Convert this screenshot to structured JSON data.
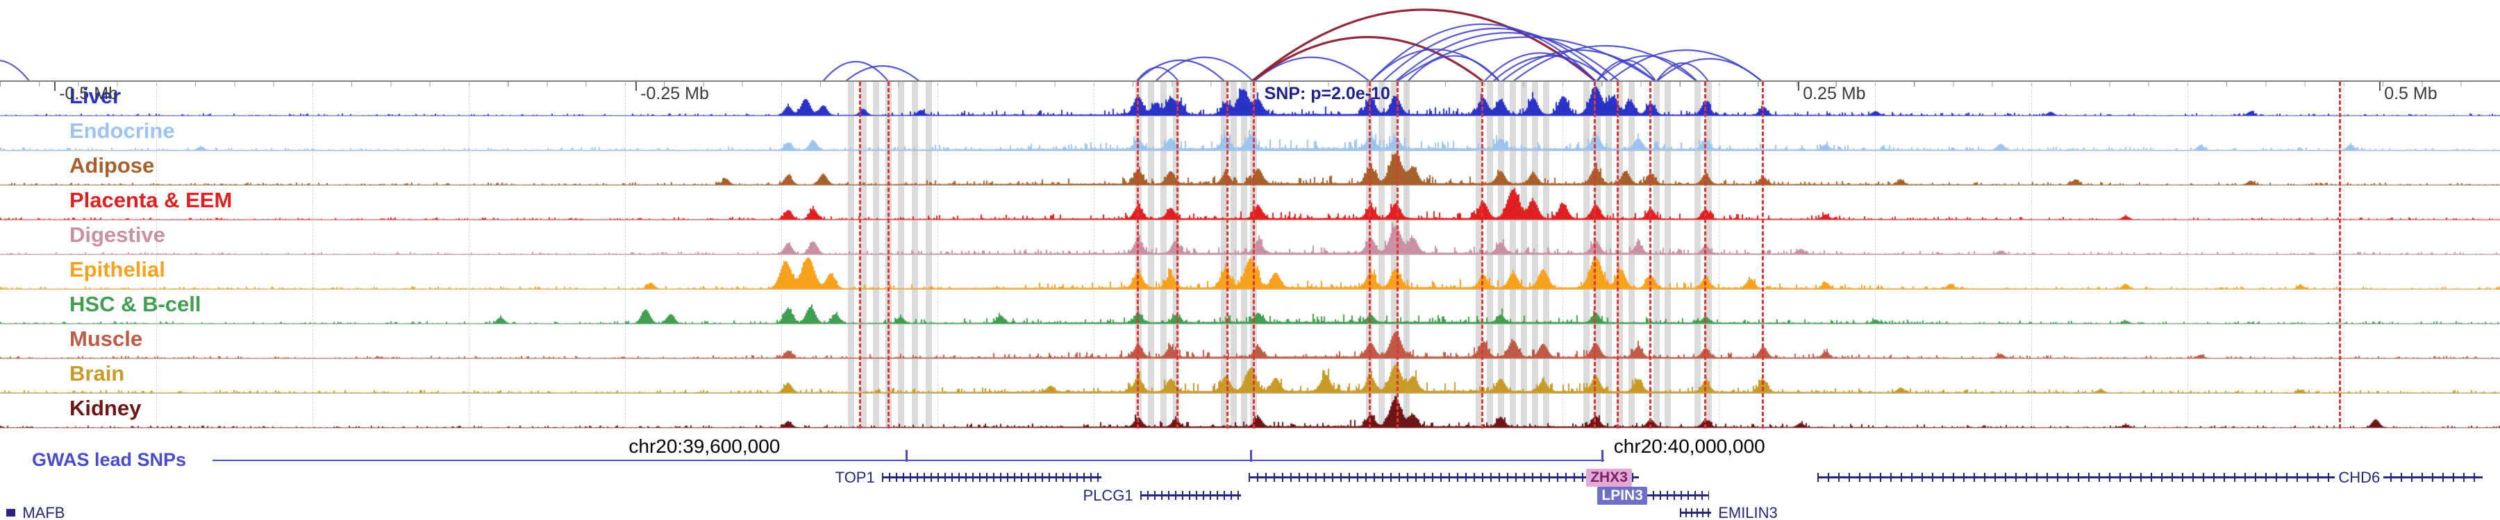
{
  "chart_data": {
    "type": "genome-tracks",
    "chrom": "chr20",
    "ruler": {
      "mb_ticks": [
        {
          "label": "-0.5 Mb",
          "x": 0.022
        },
        {
          "label": "-0.25 Mb",
          "x": 0.2545
        },
        {
          "label": "0.25 Mb",
          "x": 0.7195
        },
        {
          "label": "0.5 Mb",
          "x": 0.952
        }
      ],
      "snp": {
        "label": "SNP: p=2.0e-10",
        "x": 0.5035,
        "color": "#20208e"
      }
    },
    "coordinates": [
      {
        "label": "chr20:39,600,000",
        "x": 0.2515
      },
      {
        "label": "chr20:40,000,000",
        "x": 0.6455
      }
    ],
    "gwas": {
      "label": "GWAS lead SNPs",
      "color": "#4a4ace",
      "line_start": 0.085,
      "lead_snps": [
        0.3625,
        0.5005,
        0.641
      ]
    },
    "tracks": [
      {
        "name": "Liver",
        "color": "#2a32c8",
        "fuzz": 1.0,
        "peaks": [
          [
            0.315,
            0.28
          ],
          [
            0.322,
            0.5
          ],
          [
            0.329,
            0.3
          ],
          [
            0.345,
            0.18
          ],
          [
            0.368,
            0.15
          ],
          [
            0.455,
            0.55
          ],
          [
            0.462,
            0.35
          ],
          [
            0.468,
            0.5
          ],
          [
            0.472,
            0.3
          ],
          [
            0.49,
            0.35
          ],
          [
            0.497,
            0.75
          ],
          [
            0.503,
            0.45
          ],
          [
            0.548,
            0.5
          ],
          [
            0.558,
            0.55
          ],
          [
            0.593,
            0.5
          ],
          [
            0.6,
            0.45
          ],
          [
            0.613,
            0.5
          ],
          [
            0.625,
            0.55
          ],
          [
            0.638,
            0.85
          ],
          [
            0.645,
            0.55
          ],
          [
            0.652,
            0.4
          ],
          [
            0.66,
            0.35
          ],
          [
            0.682,
            0.4
          ],
          [
            0.705,
            0.25
          ],
          [
            0.75,
            0.12
          ],
          [
            0.82,
            0.1
          ],
          [
            0.9,
            0.12
          ]
        ]
      },
      {
        "name": "Endocrine",
        "color": "#9cc4ef",
        "fuzz": 1.3,
        "peaks": [
          [
            0.08,
            0.1
          ],
          [
            0.315,
            0.22
          ],
          [
            0.325,
            0.28
          ],
          [
            0.455,
            0.3
          ],
          [
            0.468,
            0.32
          ],
          [
            0.49,
            0.38
          ],
          [
            0.5,
            0.42
          ],
          [
            0.548,
            0.38
          ],
          [
            0.558,
            0.35
          ],
          [
            0.6,
            0.3
          ],
          [
            0.638,
            0.45
          ],
          [
            0.655,
            0.32
          ],
          [
            0.682,
            0.28
          ],
          [
            0.73,
            0.15
          ],
          [
            0.8,
            0.18
          ],
          [
            0.88,
            0.14
          ],
          [
            0.94,
            0.16
          ]
        ]
      },
      {
        "name": "Adipose",
        "color": "#a8602b",
        "fuzz": 1.1,
        "peaks": [
          [
            0.29,
            0.18
          ],
          [
            0.315,
            0.28
          ],
          [
            0.329,
            0.32
          ],
          [
            0.455,
            0.42
          ],
          [
            0.468,
            0.38
          ],
          [
            0.49,
            0.32
          ],
          [
            0.503,
            0.45
          ],
          [
            0.548,
            0.5
          ],
          [
            0.558,
            0.92
          ],
          [
            0.565,
            0.5
          ],
          [
            0.6,
            0.38
          ],
          [
            0.613,
            0.32
          ],
          [
            0.638,
            0.5
          ],
          [
            0.65,
            0.38
          ],
          [
            0.66,
            0.32
          ],
          [
            0.682,
            0.3
          ],
          [
            0.705,
            0.22
          ],
          [
            0.76,
            0.14
          ],
          [
            0.83,
            0.16
          ],
          [
            0.9,
            0.12
          ]
        ]
      },
      {
        "name": "Placenta & EEM",
        "color": "#e02020",
        "fuzz": 1.0,
        "peaks": [
          [
            0.315,
            0.28
          ],
          [
            0.325,
            0.32
          ],
          [
            0.455,
            0.38
          ],
          [
            0.468,
            0.32
          ],
          [
            0.503,
            0.38
          ],
          [
            0.548,
            0.38
          ],
          [
            0.558,
            0.45
          ],
          [
            0.593,
            0.5
          ],
          [
            0.605,
            0.88
          ],
          [
            0.613,
            0.55
          ],
          [
            0.625,
            0.45
          ],
          [
            0.638,
            0.42
          ],
          [
            0.66,
            0.3
          ],
          [
            0.682,
            0.28
          ],
          [
            0.73,
            0.14
          ],
          [
            0.85,
            0.1
          ]
        ]
      },
      {
        "name": "Digestive",
        "color": "#c890a0",
        "fuzz": 1.0,
        "peaks": [
          [
            0.315,
            0.32
          ],
          [
            0.325,
            0.38
          ],
          [
            0.455,
            0.42
          ],
          [
            0.47,
            0.36
          ],
          [
            0.503,
            0.38
          ],
          [
            0.548,
            0.45
          ],
          [
            0.558,
            0.82
          ],
          [
            0.565,
            0.45
          ],
          [
            0.6,
            0.32
          ],
          [
            0.638,
            0.38
          ],
          [
            0.655,
            0.3
          ],
          [
            0.682,
            0.24
          ],
          [
            0.72,
            0.14
          ],
          [
            0.8,
            0.1
          ]
        ]
      },
      {
        "name": "Epithelial",
        "color": "#f7a11c",
        "fuzz": 1.1,
        "peaks": [
          [
            0.26,
            0.18
          ],
          [
            0.314,
            0.82
          ],
          [
            0.323,
            0.95
          ],
          [
            0.332,
            0.45
          ],
          [
            0.455,
            0.48
          ],
          [
            0.468,
            0.42
          ],
          [
            0.49,
            0.55
          ],
          [
            0.5,
            0.88
          ],
          [
            0.51,
            0.45
          ],
          [
            0.548,
            0.45
          ],
          [
            0.558,
            0.55
          ],
          [
            0.593,
            0.38
          ],
          [
            0.605,
            0.45
          ],
          [
            0.617,
            0.55
          ],
          [
            0.638,
            0.92
          ],
          [
            0.648,
            0.55
          ],
          [
            0.66,
            0.38
          ],
          [
            0.682,
            0.32
          ],
          [
            0.7,
            0.28
          ],
          [
            0.73,
            0.18
          ],
          [
            0.78,
            0.14
          ],
          [
            0.85,
            0.14
          ],
          [
            0.92,
            0.1
          ]
        ]
      },
      {
        "name": "HSC & B-cell",
        "color": "#3f9e4f",
        "fuzz": 1.1,
        "peaks": [
          [
            0.2,
            0.18
          ],
          [
            0.258,
            0.42
          ],
          [
            0.268,
            0.28
          ],
          [
            0.315,
            0.45
          ],
          [
            0.324,
            0.5
          ],
          [
            0.334,
            0.28
          ],
          [
            0.36,
            0.18
          ],
          [
            0.4,
            0.22
          ],
          [
            0.455,
            0.28
          ],
          [
            0.47,
            0.22
          ],
          [
            0.503,
            0.28
          ],
          [
            0.548,
            0.22
          ],
          [
            0.6,
            0.22
          ],
          [
            0.638,
            0.28
          ],
          [
            0.682,
            0.18
          ],
          [
            0.75,
            0.1
          ],
          [
            0.85,
            0.08
          ]
        ]
      },
      {
        "name": "Muscle",
        "color": "#bf5a47",
        "fuzz": 1.1,
        "peaks": [
          [
            0.315,
            0.22
          ],
          [
            0.455,
            0.38
          ],
          [
            0.468,
            0.32
          ],
          [
            0.503,
            0.32
          ],
          [
            0.548,
            0.42
          ],
          [
            0.558,
            0.75
          ],
          [
            0.593,
            0.45
          ],
          [
            0.605,
            0.5
          ],
          [
            0.617,
            0.4
          ],
          [
            0.638,
            0.42
          ],
          [
            0.655,
            0.32
          ],
          [
            0.682,
            0.28
          ],
          [
            0.705,
            0.32
          ],
          [
            0.73,
            0.18
          ],
          [
            0.8,
            0.12
          ],
          [
            0.88,
            0.1
          ]
        ]
      },
      {
        "name": "Brain",
        "color": "#c89a28",
        "fuzz": 1.3,
        "peaks": [
          [
            0.315,
            0.28
          ],
          [
            0.42,
            0.18
          ],
          [
            0.455,
            0.42
          ],
          [
            0.468,
            0.38
          ],
          [
            0.49,
            0.45
          ],
          [
            0.5,
            0.7
          ],
          [
            0.51,
            0.4
          ],
          [
            0.53,
            0.5
          ],
          [
            0.548,
            0.45
          ],
          [
            0.558,
            0.8
          ],
          [
            0.565,
            0.45
          ],
          [
            0.6,
            0.38
          ],
          [
            0.617,
            0.32
          ],
          [
            0.638,
            0.45
          ],
          [
            0.655,
            0.38
          ],
          [
            0.682,
            0.32
          ],
          [
            0.705,
            0.38
          ],
          [
            0.76,
            0.14
          ],
          [
            0.84,
            0.1
          ],
          [
            0.92,
            0.08
          ]
        ]
      },
      {
        "name": "Kidney",
        "color": "#6e1616",
        "fuzz": 0.9,
        "peaks": [
          [
            0.315,
            0.18
          ],
          [
            0.455,
            0.28
          ],
          [
            0.47,
            0.22
          ],
          [
            0.503,
            0.28
          ],
          [
            0.548,
            0.35
          ],
          [
            0.558,
            0.85
          ],
          [
            0.565,
            0.35
          ],
          [
            0.6,
            0.28
          ],
          [
            0.638,
            0.32
          ],
          [
            0.66,
            0.22
          ],
          [
            0.682,
            0.22
          ],
          [
            0.72,
            0.12
          ],
          [
            0.85,
            0.08
          ],
          [
            0.95,
            0.25
          ]
        ]
      }
    ],
    "grey_bands": [
      0.3405,
      0.3455,
      0.3505,
      0.3555,
      0.3605,
      0.366,
      0.3715,
      0.4555,
      0.4605,
      0.4655,
      0.4705,
      0.4895,
      0.4935,
      0.4975,
      0.5015,
      0.5475,
      0.5525,
      0.5575,
      0.5625,
      0.5915,
      0.596,
      0.6005,
      0.605,
      0.6095,
      0.614,
      0.6185,
      0.6345,
      0.639,
      0.6435,
      0.648,
      0.6525,
      0.6625,
      0.667,
      0.679,
      0.6835
    ],
    "red_dashed_lines": [
      0.344,
      0.3555,
      0.455,
      0.471,
      0.491,
      0.5015,
      0.548,
      0.559,
      0.593,
      0.638,
      0.647,
      0.66,
      0.682,
      0.705,
      0.936
    ],
    "arcs": {
      "colors": {
        "b": "#3c3ccd",
        "r": "#8c1f33"
      },
      "items": [
        [
          -0.015,
          0.012,
          "b",
          0.3
        ],
        [
          0.329,
          0.3555,
          "b",
          0.28
        ],
        [
          0.338,
          0.368,
          "b",
          0.22
        ],
        [
          0.4545,
          0.4715,
          "b",
          0.2
        ],
        [
          0.4545,
          0.49,
          "b",
          0.3
        ],
        [
          0.462,
          0.5015,
          "b",
          0.34
        ],
        [
          0.5015,
          0.548,
          "b",
          0.34
        ],
        [
          0.5005,
          0.5935,
          "r",
          0.62
        ],
        [
          0.5005,
          0.6385,
          "r",
          1.0
        ],
        [
          0.548,
          0.6,
          "b",
          0.45
        ],
        [
          0.548,
          0.6385,
          "b",
          0.8
        ],
        [
          0.553,
          0.6435,
          "b",
          0.74
        ],
        [
          0.558,
          0.648,
          "b",
          0.68
        ],
        [
          0.5585,
          0.6625,
          "b",
          0.62
        ],
        [
          0.563,
          0.6,
          "b",
          0.36
        ],
        [
          0.5935,
          0.6385,
          "b",
          0.4
        ],
        [
          0.597,
          0.6435,
          "b",
          0.36
        ],
        [
          0.6005,
          0.6625,
          "b",
          0.44
        ],
        [
          0.605,
          0.679,
          "b",
          0.5
        ],
        [
          0.6385,
          0.6625,
          "b",
          0.3
        ],
        [
          0.6385,
          0.679,
          "b",
          0.36
        ],
        [
          0.6435,
          0.705,
          "b",
          0.44
        ],
        [
          0.6625,
          0.6835,
          "b",
          0.26
        ],
        [
          0.6625,
          0.705,
          "b",
          0.32
        ]
      ]
    },
    "genes": {
      "color": "#26267e",
      "rows_y": [
        682,
        708,
        733
      ],
      "items": [
        {
          "name": "TOP1",
          "row": 0,
          "x1": 0.3527,
          "x2": 0.4405,
          "label_pos": "left",
          "tick_gap": 10
        },
        {
          "name": "ZHX3",
          "row": 0,
          "x1": 0.4995,
          "x2": 0.6555,
          "label_pos": "box",
          "label_x": 0.6345,
          "box_bg": "#e2a9d6",
          "box_fg": "#7c2160",
          "tick_gap": 12
        },
        {
          "name": "CHD6",
          "row": 0,
          "x1": 0.727,
          "x2": 0.993,
          "label_pos": "inline",
          "label_x": 0.934,
          "tick_gap": 15
        },
        {
          "name": "PLCG1",
          "row": 1,
          "x1": 0.456,
          "x2": 0.4965,
          "label_pos": "left",
          "tick_gap": 10
        },
        {
          "name": "LPIN3",
          "row": 1,
          "x1": 0.6555,
          "x2": 0.6835,
          "label_pos": "box",
          "label_x": 0.639,
          "box_bg": "#6f6fc9",
          "box_fg": "#ffffff",
          "tick_gap": 10
        },
        {
          "name": "EMILIN3",
          "row": 2,
          "x1": 0.672,
          "x2": 0.6845,
          "label_pos": "right",
          "tick_gap": 8
        },
        {
          "name": "MAFB",
          "row": 2,
          "x1": 0.0025,
          "x2": 0.0062,
          "label_pos": "right",
          "style": "box"
        }
      ]
    },
    "style": {
      "red_line_color": "#e23535",
      "grey_band_color": "rgba(170,170,170,0.42)",
      "grid_color": "#d8d8d8",
      "separator_color": "#c9c9c9",
      "ruler_line_color": "#808080",
      "mb_label_color": "#3a3a3a"
    }
  },
  "noise_seed": 11
}
